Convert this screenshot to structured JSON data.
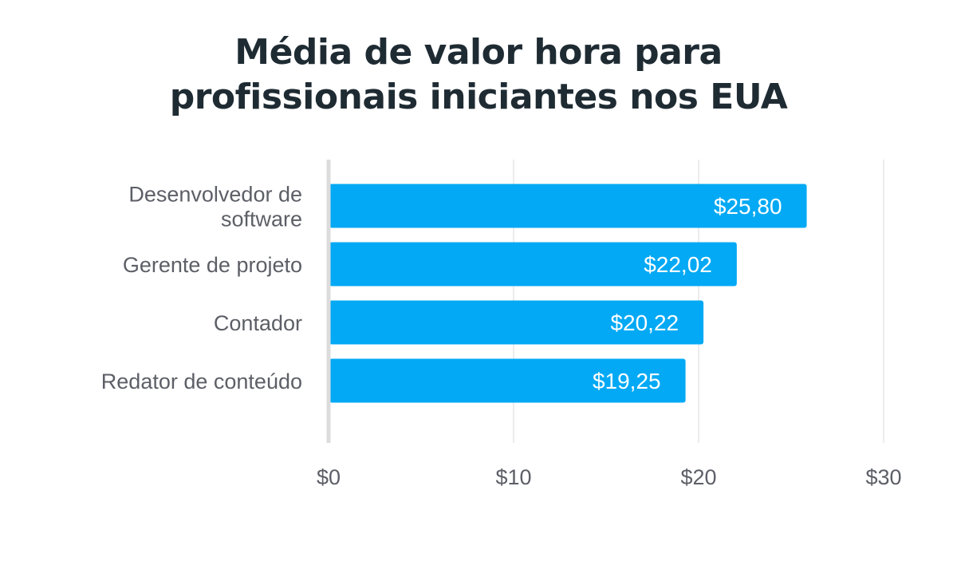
{
  "chart_data": {
    "type": "bar",
    "orientation": "horizontal",
    "title_lines": [
      "Média de valor hora para",
      "profissionais iniciantes nos EUA"
    ],
    "categories": [
      [
        "Desenvolvedor de",
        "software"
      ],
      [
        "Gerente de projeto"
      ],
      [
        "Contador"
      ],
      [
        "Redator de conteúdo"
      ]
    ],
    "values": [
      25.8,
      22.02,
      20.22,
      19.25
    ],
    "value_labels": [
      "$25,80",
      "$22,02",
      "$20,22",
      "$19,25"
    ],
    "xlim": [
      0,
      30
    ],
    "ticks": [
      0,
      10,
      20,
      30
    ],
    "tick_labels": [
      "$0",
      "$10",
      "$20",
      "$30"
    ],
    "grid": true,
    "xlabel": "",
    "ylabel": ""
  },
  "colors": {
    "bar": "#03a9f4",
    "grid": "#e6e6e6",
    "axis": "#dcdcdc",
    "title": "#1f2b33",
    "label": "#5c5f66"
  }
}
